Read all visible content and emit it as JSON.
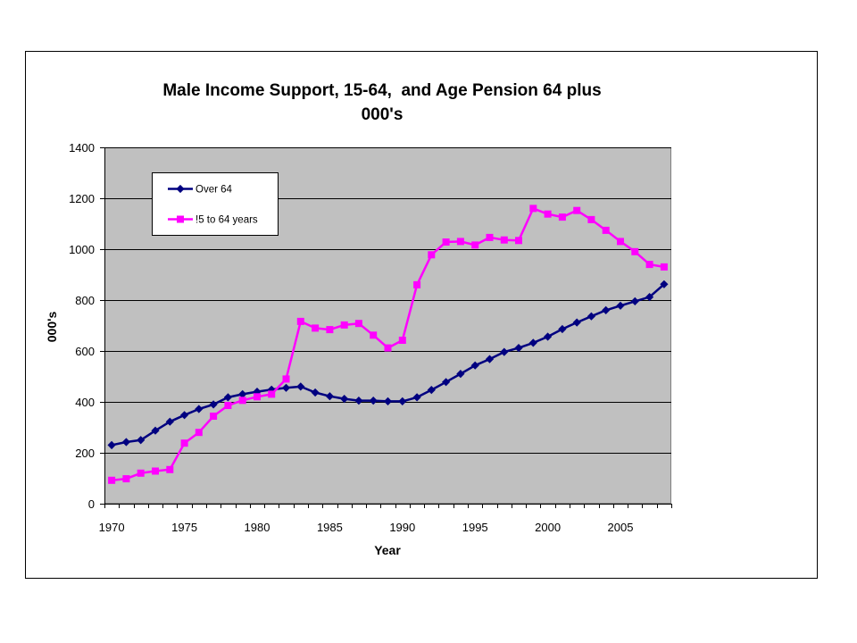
{
  "chart_data": {
    "type": "line",
    "title": "Male Income Support, 15-64,  and Age Pension 64 plus",
    "subtitle": "000's",
    "xlabel": "Year",
    "ylabel": "000's",
    "x": [
      1970,
      1971,
      1972,
      1973,
      1974,
      1975,
      1976,
      1977,
      1978,
      1979,
      1980,
      1981,
      1982,
      1983,
      1984,
      1985,
      1986,
      1987,
      1988,
      1989,
      1990,
      1991,
      1992,
      1993,
      1994,
      1995,
      1996,
      1997,
      1998,
      1999,
      2000,
      2001,
      2002,
      2003,
      2004,
      2005,
      2006,
      2007,
      2008
    ],
    "ylim": [
      0,
      1400
    ],
    "yticks": [
      0,
      200,
      400,
      600,
      800,
      1000,
      1200,
      1400
    ],
    "grid": true,
    "legend": "top-left",
    "plot_background": "#C0C0C0",
    "series": [
      {
        "name": "Over 64",
        "color": "#000080",
        "marker": "diamond",
        "values": [
          230,
          242,
          250,
          287,
          322,
          348,
          372,
          390,
          418,
          430,
          440,
          448,
          455,
          460,
          437,
          422,
          412,
          405,
          405,
          402,
          402,
          418,
          447,
          478,
          510,
          543,
          568,
          596,
          612,
          632,
          656,
          686,
          712,
          736,
          760,
          778,
          795,
          812,
          862
        ]
      },
      {
        "name": "!5 to 64 years",
        "color": "#FF00FF",
        "marker": "square",
        "values": [
          92,
          98,
          120,
          128,
          134,
          238,
          280,
          344,
          386,
          406,
          420,
          430,
          490,
          716,
          690,
          684,
          702,
          708,
          662,
          612,
          642,
          860,
          978,
          1028,
          1030,
          1016,
          1046,
          1036,
          1034,
          1160,
          1138,
          1126,
          1152,
          1116,
          1074,
          1030,
          990,
          940,
          930
        ]
      }
    ]
  }
}
